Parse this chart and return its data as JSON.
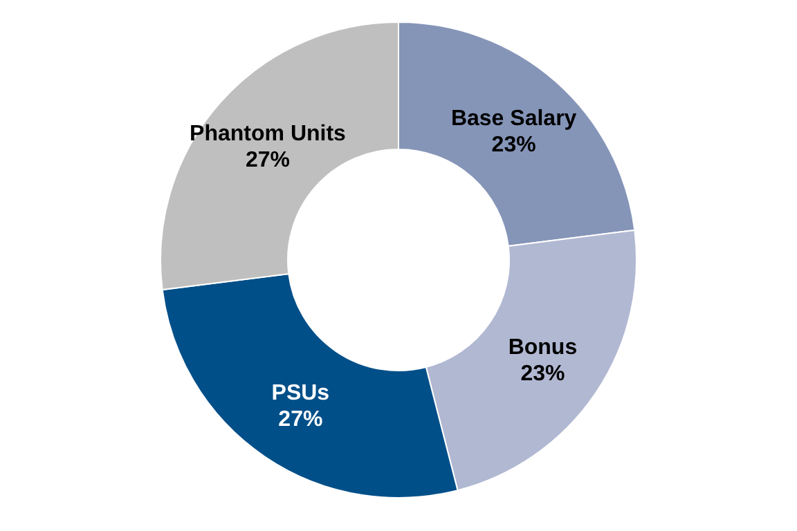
{
  "chart_data": {
    "type": "donut",
    "categories": [
      "Base Salary",
      "Bonus",
      "PSUs",
      "Phantom Units"
    ],
    "values": [
      23,
      23,
      27,
      27
    ],
    "value_labels": [
      "23%",
      "23%",
      "27%",
      "27%"
    ],
    "colors": [
      "#8595b8",
      "#b1b8d2",
      "#004f89",
      "#bfbfbf"
    ]
  }
}
